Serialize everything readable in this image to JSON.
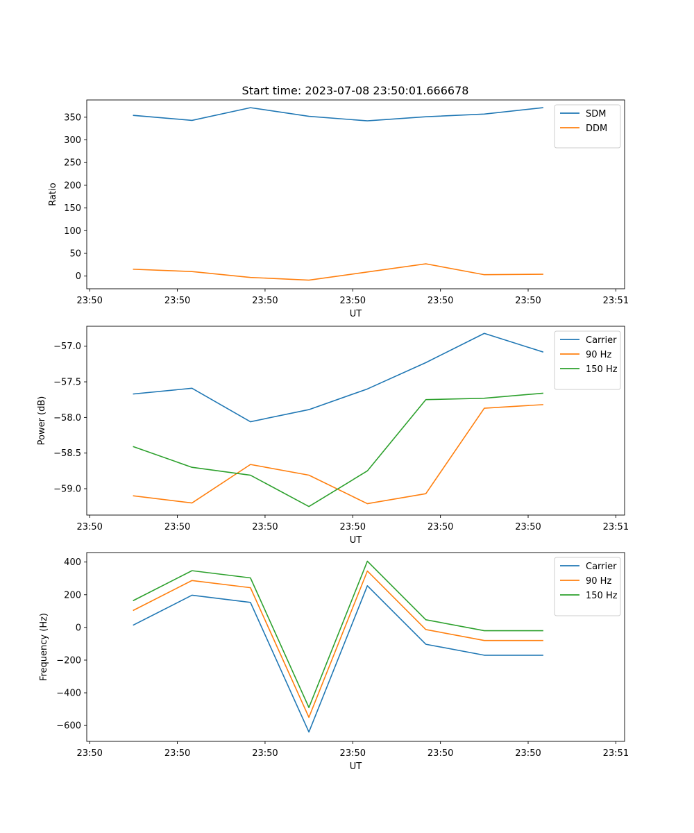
{
  "figure_title": "Start time: 2023-07-08 23:50:01.666678",
  "chart_data": [
    {
      "type": "line",
      "title": "Start time: 2023-07-08 23:50:01.666678",
      "xlabel": "UT",
      "ylabel": "Ratio",
      "x_sample_index": [
        1,
        2,
        3,
        4,
        5,
        6,
        7,
        8
      ],
      "xlim": [
        0.2,
        9.4
      ],
      "x_ticks": [
        0.25,
        1.75,
        3.25,
        4.75,
        6.25,
        7.75,
        9.25
      ],
      "x_tick_labels": [
        "23:50",
        "23:50",
        "23:50",
        "23:50",
        "23:50",
        "23:50",
        "23:51"
      ],
      "ylim": [
        -28,
        388
      ],
      "y_ticks": [
        0,
        50,
        100,
        150,
        200,
        250,
        300,
        350
      ],
      "y_tick_labels": [
        "0",
        "50",
        "100",
        "150",
        "200",
        "250",
        "300",
        "350"
      ],
      "legend_position": "top-right",
      "series": [
        {
          "name": "SDM",
          "color": "#1f77b4",
          "values": [
            354,
            343,
            371,
            352,
            342,
            351,
            357,
            371
          ]
        },
        {
          "name": "DDM",
          "color": "#ff7f0e",
          "values": [
            15,
            10,
            -3,
            -9,
            9,
            27,
            3,
            4
          ]
        }
      ]
    },
    {
      "type": "line",
      "title": "",
      "xlabel": "UT",
      "ylabel": "Power (dB)",
      "x_sample_index": [
        1,
        2,
        3,
        4,
        5,
        6,
        7,
        8
      ],
      "xlim": [
        0.2,
        9.4
      ],
      "x_ticks": [
        0.25,
        1.75,
        3.25,
        4.75,
        6.25,
        7.75,
        9.25
      ],
      "x_tick_labels": [
        "23:50",
        "23:50",
        "23:50",
        "23:50",
        "23:50",
        "23:50",
        "23:51"
      ],
      "ylim": [
        -59.37,
        -56.72
      ],
      "y_ticks": [
        -59.0,
        -58.5,
        -58.0,
        -57.5,
        -57.0
      ],
      "y_tick_labels": [
        "−59.0",
        "−58.5",
        "−58.0",
        "−57.5",
        "−57.0"
      ],
      "legend_position": "top-right",
      "series": [
        {
          "name": "Carrier",
          "color": "#1f77b4",
          "values": [
            -57.67,
            -57.59,
            -58.06,
            -57.89,
            -57.6,
            -57.23,
            -56.82,
            -57.08
          ]
        },
        {
          "name": "90 Hz",
          "color": "#ff7f0e",
          "values": [
            -59.1,
            -59.2,
            -58.66,
            -58.81,
            -59.21,
            -59.07,
            -57.87,
            -57.82
          ]
        },
        {
          "name": "150 Hz",
          "color": "#2ca02c",
          "values": [
            -58.41,
            -58.7,
            -58.81,
            -59.25,
            -58.75,
            -57.75,
            -57.73,
            -57.66
          ]
        }
      ]
    },
    {
      "type": "line",
      "title": "",
      "xlabel": "UT",
      "ylabel": "Frequency (Hz)",
      "x_sample_index": [
        1,
        2,
        3,
        4,
        5,
        6,
        7,
        8
      ],
      "xlim": [
        0.2,
        9.4
      ],
      "x_ticks": [
        0.25,
        1.75,
        3.25,
        4.75,
        6.25,
        7.75,
        9.25
      ],
      "x_tick_labels": [
        "23:50",
        "23:50",
        "23:50",
        "23:50",
        "23:50",
        "23:50",
        "23:51"
      ],
      "ylim": [
        -697,
        458
      ],
      "y_ticks": [
        -600,
        -400,
        -200,
        0,
        200,
        400
      ],
      "y_tick_labels": [
        "−600",
        "−400",
        "−200",
        "0",
        "200",
        "400"
      ],
      "legend_position": "top-right",
      "series": [
        {
          "name": "Carrier",
          "color": "#1f77b4",
          "values": [
            15,
            197,
            153,
            -640,
            255,
            -103,
            -170,
            -170
          ]
        },
        {
          "name": "90 Hz",
          "color": "#ff7f0e",
          "values": [
            105,
            287,
            243,
            -550,
            345,
            -13,
            -80,
            -80
          ]
        },
        {
          "name": "150 Hz",
          "color": "#2ca02c",
          "values": [
            165,
            347,
            303,
            -490,
            405,
            47,
            -20,
            -20
          ]
        }
      ]
    }
  ]
}
